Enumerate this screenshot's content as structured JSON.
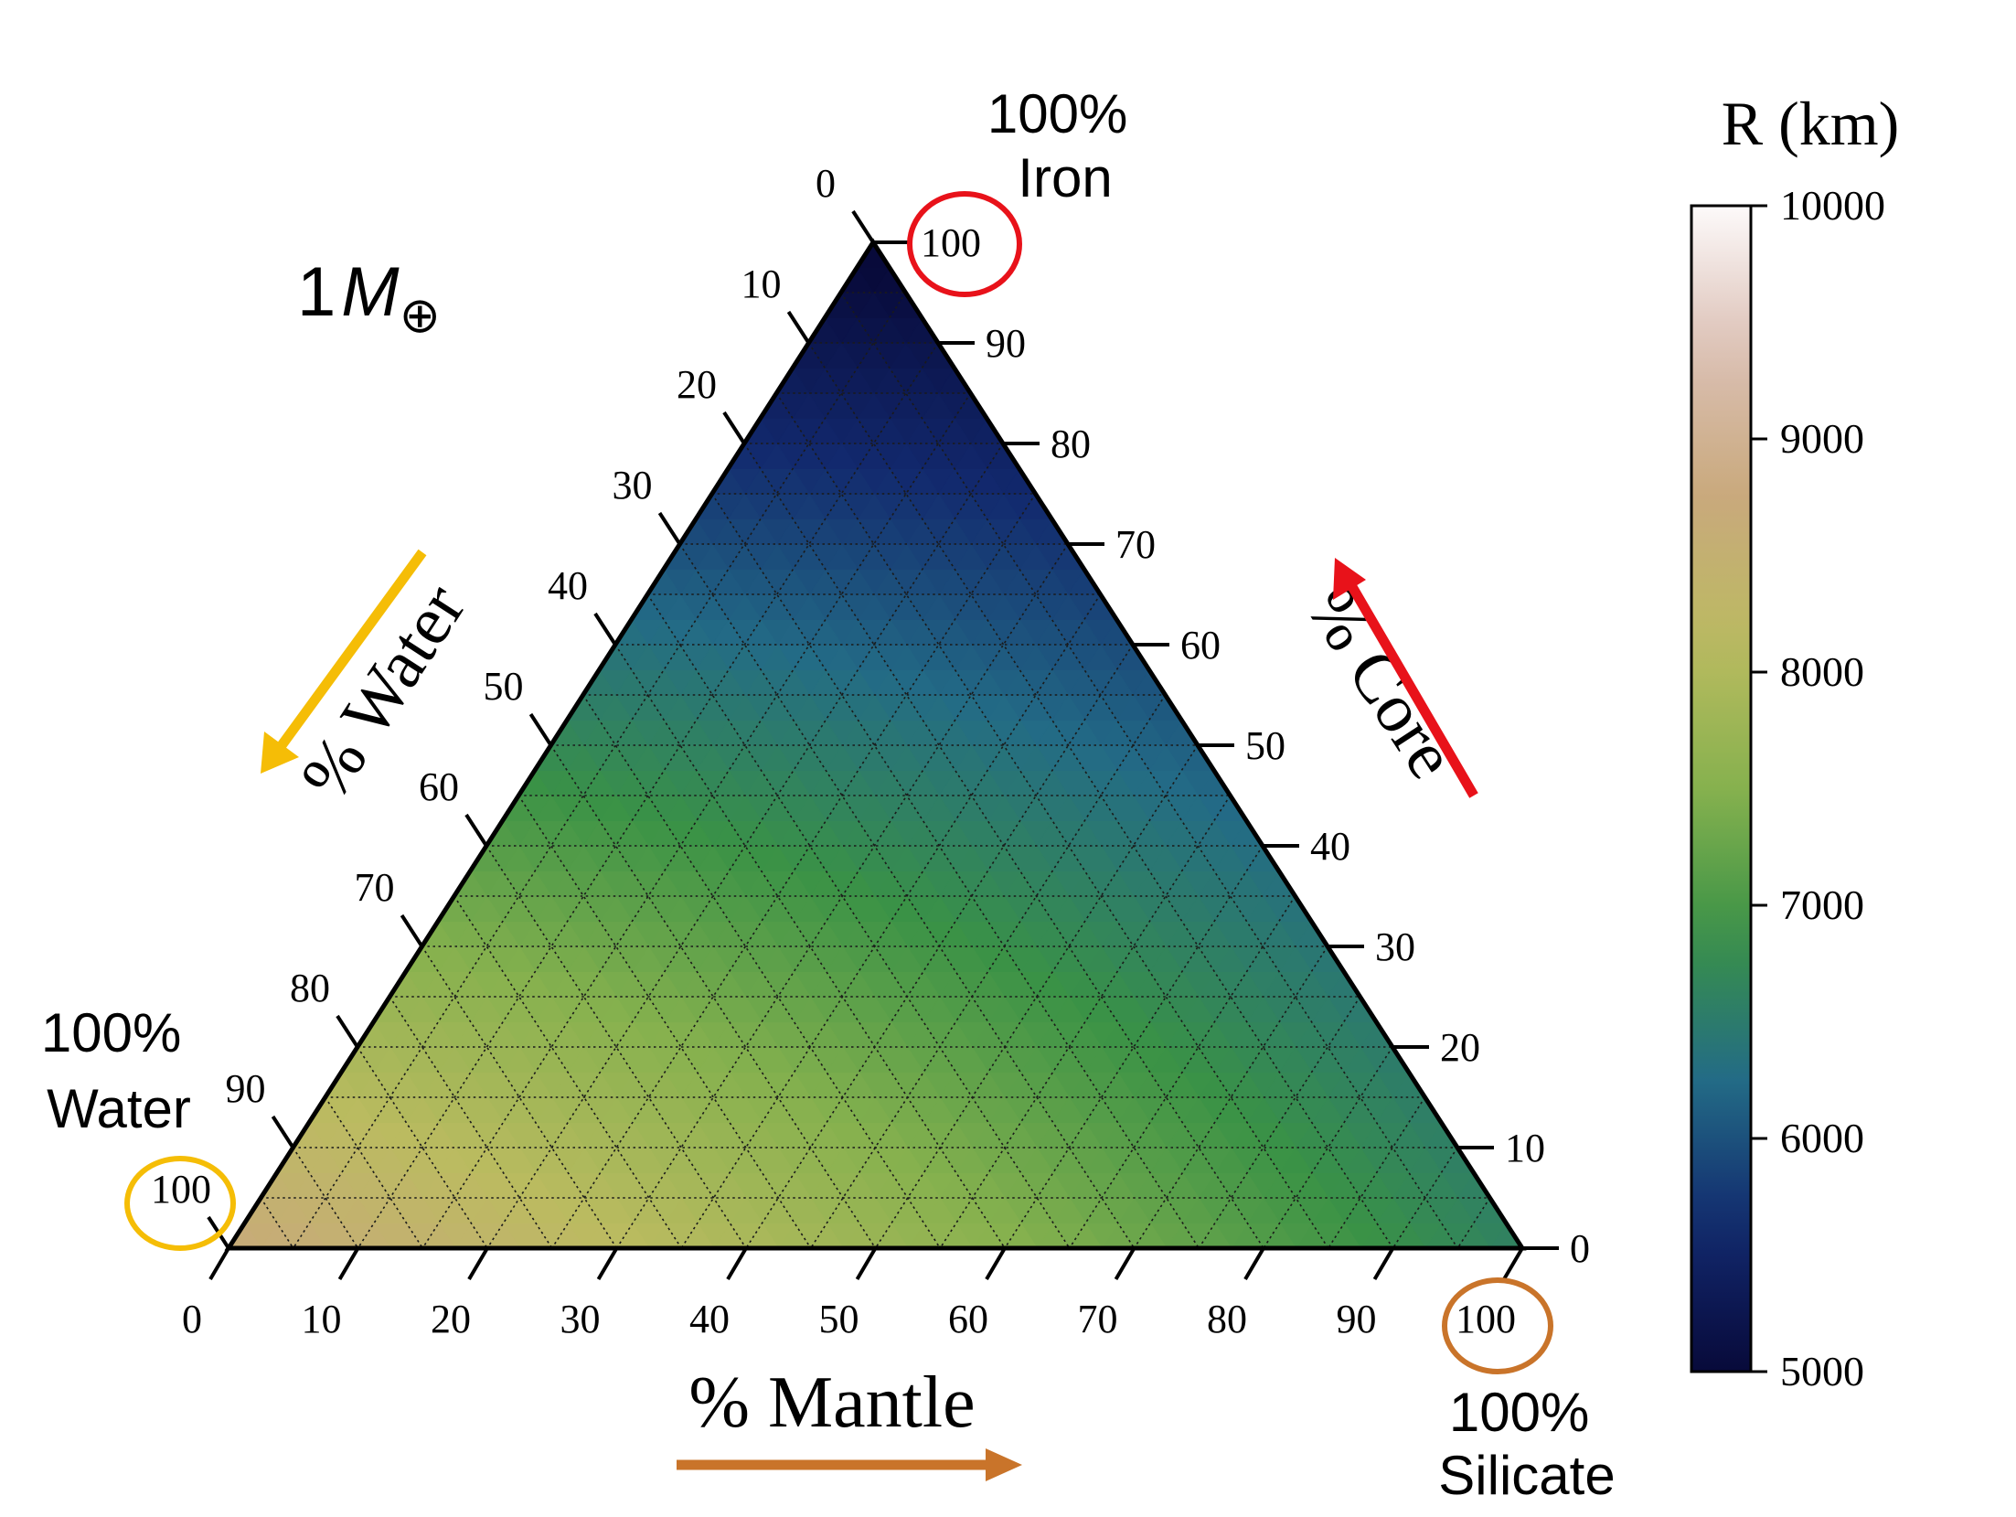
{
  "chart_data": {
    "type": "ternary-heatmap",
    "mass_label": {
      "prefix": "1",
      "symbol": "M",
      "subscript": "⊕"
    },
    "axes": {
      "water": {
        "label": "% Water",
        "ticks": [
          "0",
          "10",
          "20",
          "30",
          "40",
          "50",
          "60",
          "70",
          "80",
          "90",
          "100"
        ]
      },
      "core": {
        "label": "% Core",
        "ticks": [
          "0",
          "10",
          "20",
          "30",
          "40",
          "50",
          "60",
          "70",
          "80",
          "90",
          "100"
        ]
      },
      "mantle": {
        "label": "% Mantle",
        "ticks": [
          "0",
          "10",
          "20",
          "30",
          "40",
          "50",
          "60",
          "70",
          "80",
          "90",
          "100"
        ]
      }
    },
    "vertices": {
      "iron": {
        "line1": "100%",
        "line2": "Iron"
      },
      "water": {
        "line1": "100%",
        "line2": "Water"
      },
      "silicate": {
        "line1": "100%",
        "line2": "Silicate"
      }
    },
    "grid": true,
    "grid_step": 5,
    "colorbar": {
      "title": "R (km)",
      "min": 5000,
      "max": 10000,
      "ticks": [
        "5000",
        "6000",
        "7000",
        "8000",
        "9000",
        "10000"
      ],
      "colors": [
        "#080a3a",
        "#12296e",
        "#236b86",
        "#3a9246",
        "#86b14e",
        "#bbbb60",
        "#c9a97c",
        "#dbbfb4",
        "#fdfafa"
      ]
    },
    "radius_at_vertices_km": {
      "iron": 4900,
      "silicate": 6600,
      "water": 8700
    },
    "highlight_colors": {
      "iron": "#e8121a",
      "water": "#f5bd06",
      "silicate": "#c9742a"
    }
  }
}
